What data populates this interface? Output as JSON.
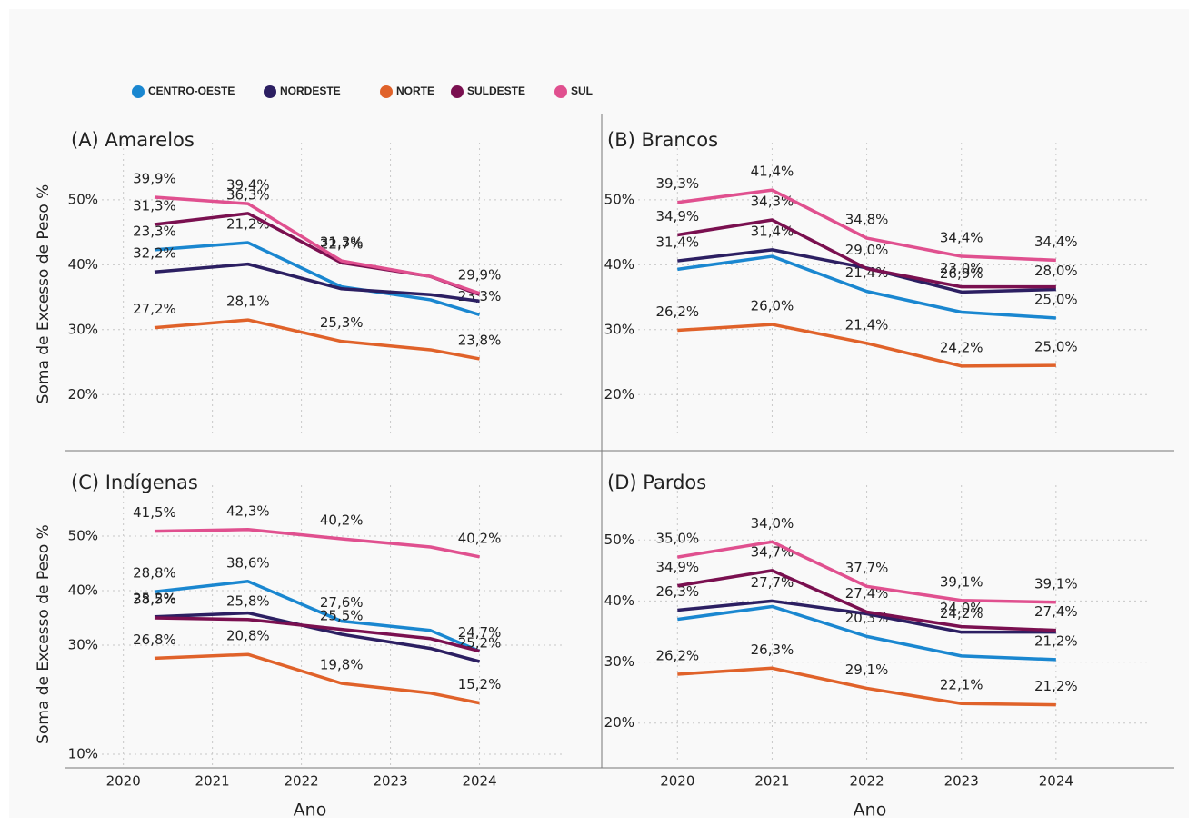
{
  "chart_data": [
    {
      "type": "line",
      "title": "(A) Amarelos",
      "ylabel": "Soma de Excesso de Peso %",
      "grid": true,
      "legend": "top",
      "x": [
        2020.35,
        2021.4,
        2022.45,
        2023.45,
        2024
      ],
      "xlim": [
        2019.35,
        2025.25
      ],
      "ylim": [
        15,
        56
      ],
      "yticks": [
        {
          "value": 20,
          "label": "20%"
        },
        {
          "value": 30,
          "label": "30%"
        },
        {
          "value": 40,
          "label": "40%"
        },
        {
          "value": 50,
          "label": "50%"
        }
      ],
      "series": [
        {
          "name": "CENTRO-OESTE",
          "color": "#1a87d0",
          "values": [
            42.3,
            43.4,
            36.6,
            34.6,
            32.3
          ],
          "point_labels": [
            "23,3%",
            "21,2%",
            null,
            null,
            "23,3%"
          ]
        },
        {
          "name": "NORDESTE",
          "color": "#2c1f62",
          "values": [
            38.9,
            40.1,
            36.3,
            35.4,
            34.4
          ],
          "point_labels": [
            "32,2%",
            null,
            null,
            null,
            null
          ]
        },
        {
          "name": "NORTE",
          "color": "#e0622a",
          "values": [
            30.3,
            31.5,
            28.2,
            26.9,
            25.5
          ],
          "point_labels": [
            "27,2%",
            "28,1%",
            "25,3%",
            null,
            "23,8%"
          ]
        },
        {
          "name": "SULDESTE",
          "color": "#7a1050",
          "values": [
            46.2,
            47.9,
            40.3,
            38.2,
            35.4
          ],
          "point_labels": [
            "31,3%",
            "36,3%",
            "22,7%",
            null,
            null
          ]
        },
        {
          "name": "SUL",
          "color": "#e0508f",
          "values": [
            50.4,
            49.4,
            40.6,
            38.2,
            35.6
          ],
          "point_labels": [
            "39,9%",
            "39,4%",
            "31,3%",
            null,
            "29,9%"
          ]
        }
      ]
    },
    {
      "type": "line",
      "title": "(B) Brancos",
      "grid": true,
      "x": [
        2020,
        2021,
        2022,
        2023,
        2024
      ],
      "xlim": [
        2019.2,
        2025.25
      ],
      "ylim": [
        15,
        56
      ],
      "yticks": [
        {
          "value": 20,
          "label": "20%"
        },
        {
          "value": 30,
          "label": "30%"
        },
        {
          "value": 40,
          "label": "40%"
        },
        {
          "value": 50,
          "label": "50%"
        }
      ],
      "series": [
        {
          "name": "CENTRO-OESTE",
          "color": "#1a87d0",
          "values": [
            39.3,
            41.3,
            35.9,
            32.7,
            31.8
          ],
          "point_labels": [
            null,
            null,
            "21,4%",
            null,
            "25,0%"
          ]
        },
        {
          "name": "NORDESTE",
          "color": "#2c1f62",
          "values": [
            40.6,
            42.3,
            39.5,
            35.8,
            36.2
          ],
          "point_labels": [
            "31,4%",
            "31,4%",
            null,
            "26,9%",
            "28,0%"
          ]
        },
        {
          "name": "NORTE",
          "color": "#e0622a",
          "values": [
            29.9,
            30.8,
            27.9,
            24.4,
            24.5
          ],
          "point_labels": [
            "26,2%",
            "26,0%",
            "21,4%",
            "24,2%",
            "25,0%"
          ]
        },
        {
          "name": "SULDESTE",
          "color": "#7a1050",
          "values": [
            44.6,
            46.9,
            39.4,
            36.6,
            36.6
          ],
          "point_labels": [
            "34,9%",
            "34,3%",
            "29,0%",
            "23,0%",
            null
          ]
        },
        {
          "name": "SUL",
          "color": "#e0508f",
          "values": [
            49.6,
            51.5,
            44.1,
            41.3,
            40.7
          ],
          "point_labels": [
            "39,3%",
            "41,4%",
            "34,8%",
            "34,4%",
            "34,4%"
          ]
        }
      ]
    },
    {
      "type": "line",
      "title": "(C) Indígenas",
      "ylabel": "Soma de Excesso de Peso %",
      "xlabel": "Ano",
      "grid": true,
      "x": [
        2020.35,
        2021.4,
        2022.45,
        2023.45,
        2024
      ],
      "xlim": [
        2019.35,
        2025.25
      ],
      "ylim": [
        8,
        56
      ],
      "xticks": [
        2020,
        2021,
        2022,
        2023,
        2024
      ],
      "yticks": [
        {
          "value": 10,
          "label": "10%"
        },
        {
          "value": 30,
          "label": "30%"
        },
        {
          "value": 40,
          "label": "40%"
        },
        {
          "value": 50,
          "label": "50%"
        }
      ],
      "series": [
        {
          "name": "CENTRO-OESTE",
          "color": "#1a87d0",
          "values": [
            39.8,
            41.7,
            34.4,
            32.7,
            28.9
          ],
          "point_labels": [
            "28,8%",
            "38,6%",
            "27,6%",
            null,
            "24,7%"
          ]
        },
        {
          "name": "NORDESTE",
          "color": "#2c1f62",
          "values": [
            35.2,
            35.9,
            32.0,
            29.4,
            27.0
          ],
          "point_labels": [
            "25,2%",
            null,
            "25,5%",
            null,
            "25,2%"
          ]
        },
        {
          "name": "NORTE",
          "color": "#e0622a",
          "values": [
            27.6,
            28.3,
            23.0,
            21.2,
            19.4
          ],
          "point_labels": [
            "26,8%",
            "20,8%",
            "19,8%",
            null,
            "15,2%"
          ]
        },
        {
          "name": "SULDESTE",
          "color": "#7a1050",
          "values": [
            35.0,
            34.7,
            32.9,
            31.2,
            28.9
          ],
          "point_labels": [
            "38,5%",
            "25,8%",
            null,
            null,
            null
          ]
        },
        {
          "name": "SUL",
          "color": "#e0508f",
          "values": [
            50.9,
            51.2,
            49.5,
            48.0,
            46.2
          ],
          "point_labels": [
            "41,5%",
            "42,3%",
            "40,2%",
            null,
            "40,2%"
          ]
        }
      ]
    },
    {
      "type": "line",
      "title": "(D) Pardos",
      "xlabel": "Ano",
      "grid": true,
      "x": [
        2020,
        2021,
        2022,
        2023,
        2024
      ],
      "xlim": [
        2019.2,
        2025.25
      ],
      "ylim": [
        14,
        56
      ],
      "xticks": [
        2020,
        2021,
        2022,
        2023,
        2024
      ],
      "yticks": [
        {
          "value": 20,
          "label": "20%"
        },
        {
          "value": 30,
          "label": "30%"
        },
        {
          "value": 40,
          "label": "40%"
        },
        {
          "value": 50,
          "label": "50%"
        }
      ],
      "series": [
        {
          "name": "CENTRO-OESTE",
          "color": "#1a87d0",
          "values": [
            37.0,
            39.1,
            34.2,
            31.0,
            30.4
          ],
          "point_labels": [
            null,
            null,
            "20,3%",
            null,
            "21,2%"
          ]
        },
        {
          "name": "NORDESTE",
          "color": "#2c1f62",
          "values": [
            38.5,
            40.0,
            37.9,
            34.9,
            34.9
          ],
          "point_labels": [
            "26,3%",
            "27,7%",
            null,
            "24,2%",
            null
          ]
        },
        {
          "name": "NORTE",
          "color": "#e0622a",
          "values": [
            28.0,
            29.0,
            25.7,
            23.2,
            23.0
          ],
          "point_labels": [
            "26,2%",
            "26,3%",
            "29,1%",
            "22,1%",
            "21,2%"
          ]
        },
        {
          "name": "SULDESTE",
          "color": "#7a1050",
          "values": [
            42.5,
            45.0,
            38.2,
            35.8,
            35.2
          ],
          "point_labels": [
            "34,9%",
            "34,7%",
            "27,4%",
            "24,0%",
            "27,4%"
          ]
        },
        {
          "name": "SUL",
          "color": "#e0508f",
          "values": [
            47.2,
            49.7,
            42.4,
            40.1,
            39.8
          ],
          "point_labels": [
            "35,0%",
            "34,0%",
            "37,7%",
            "39,1%",
            "39,1%"
          ]
        }
      ]
    }
  ]
}
